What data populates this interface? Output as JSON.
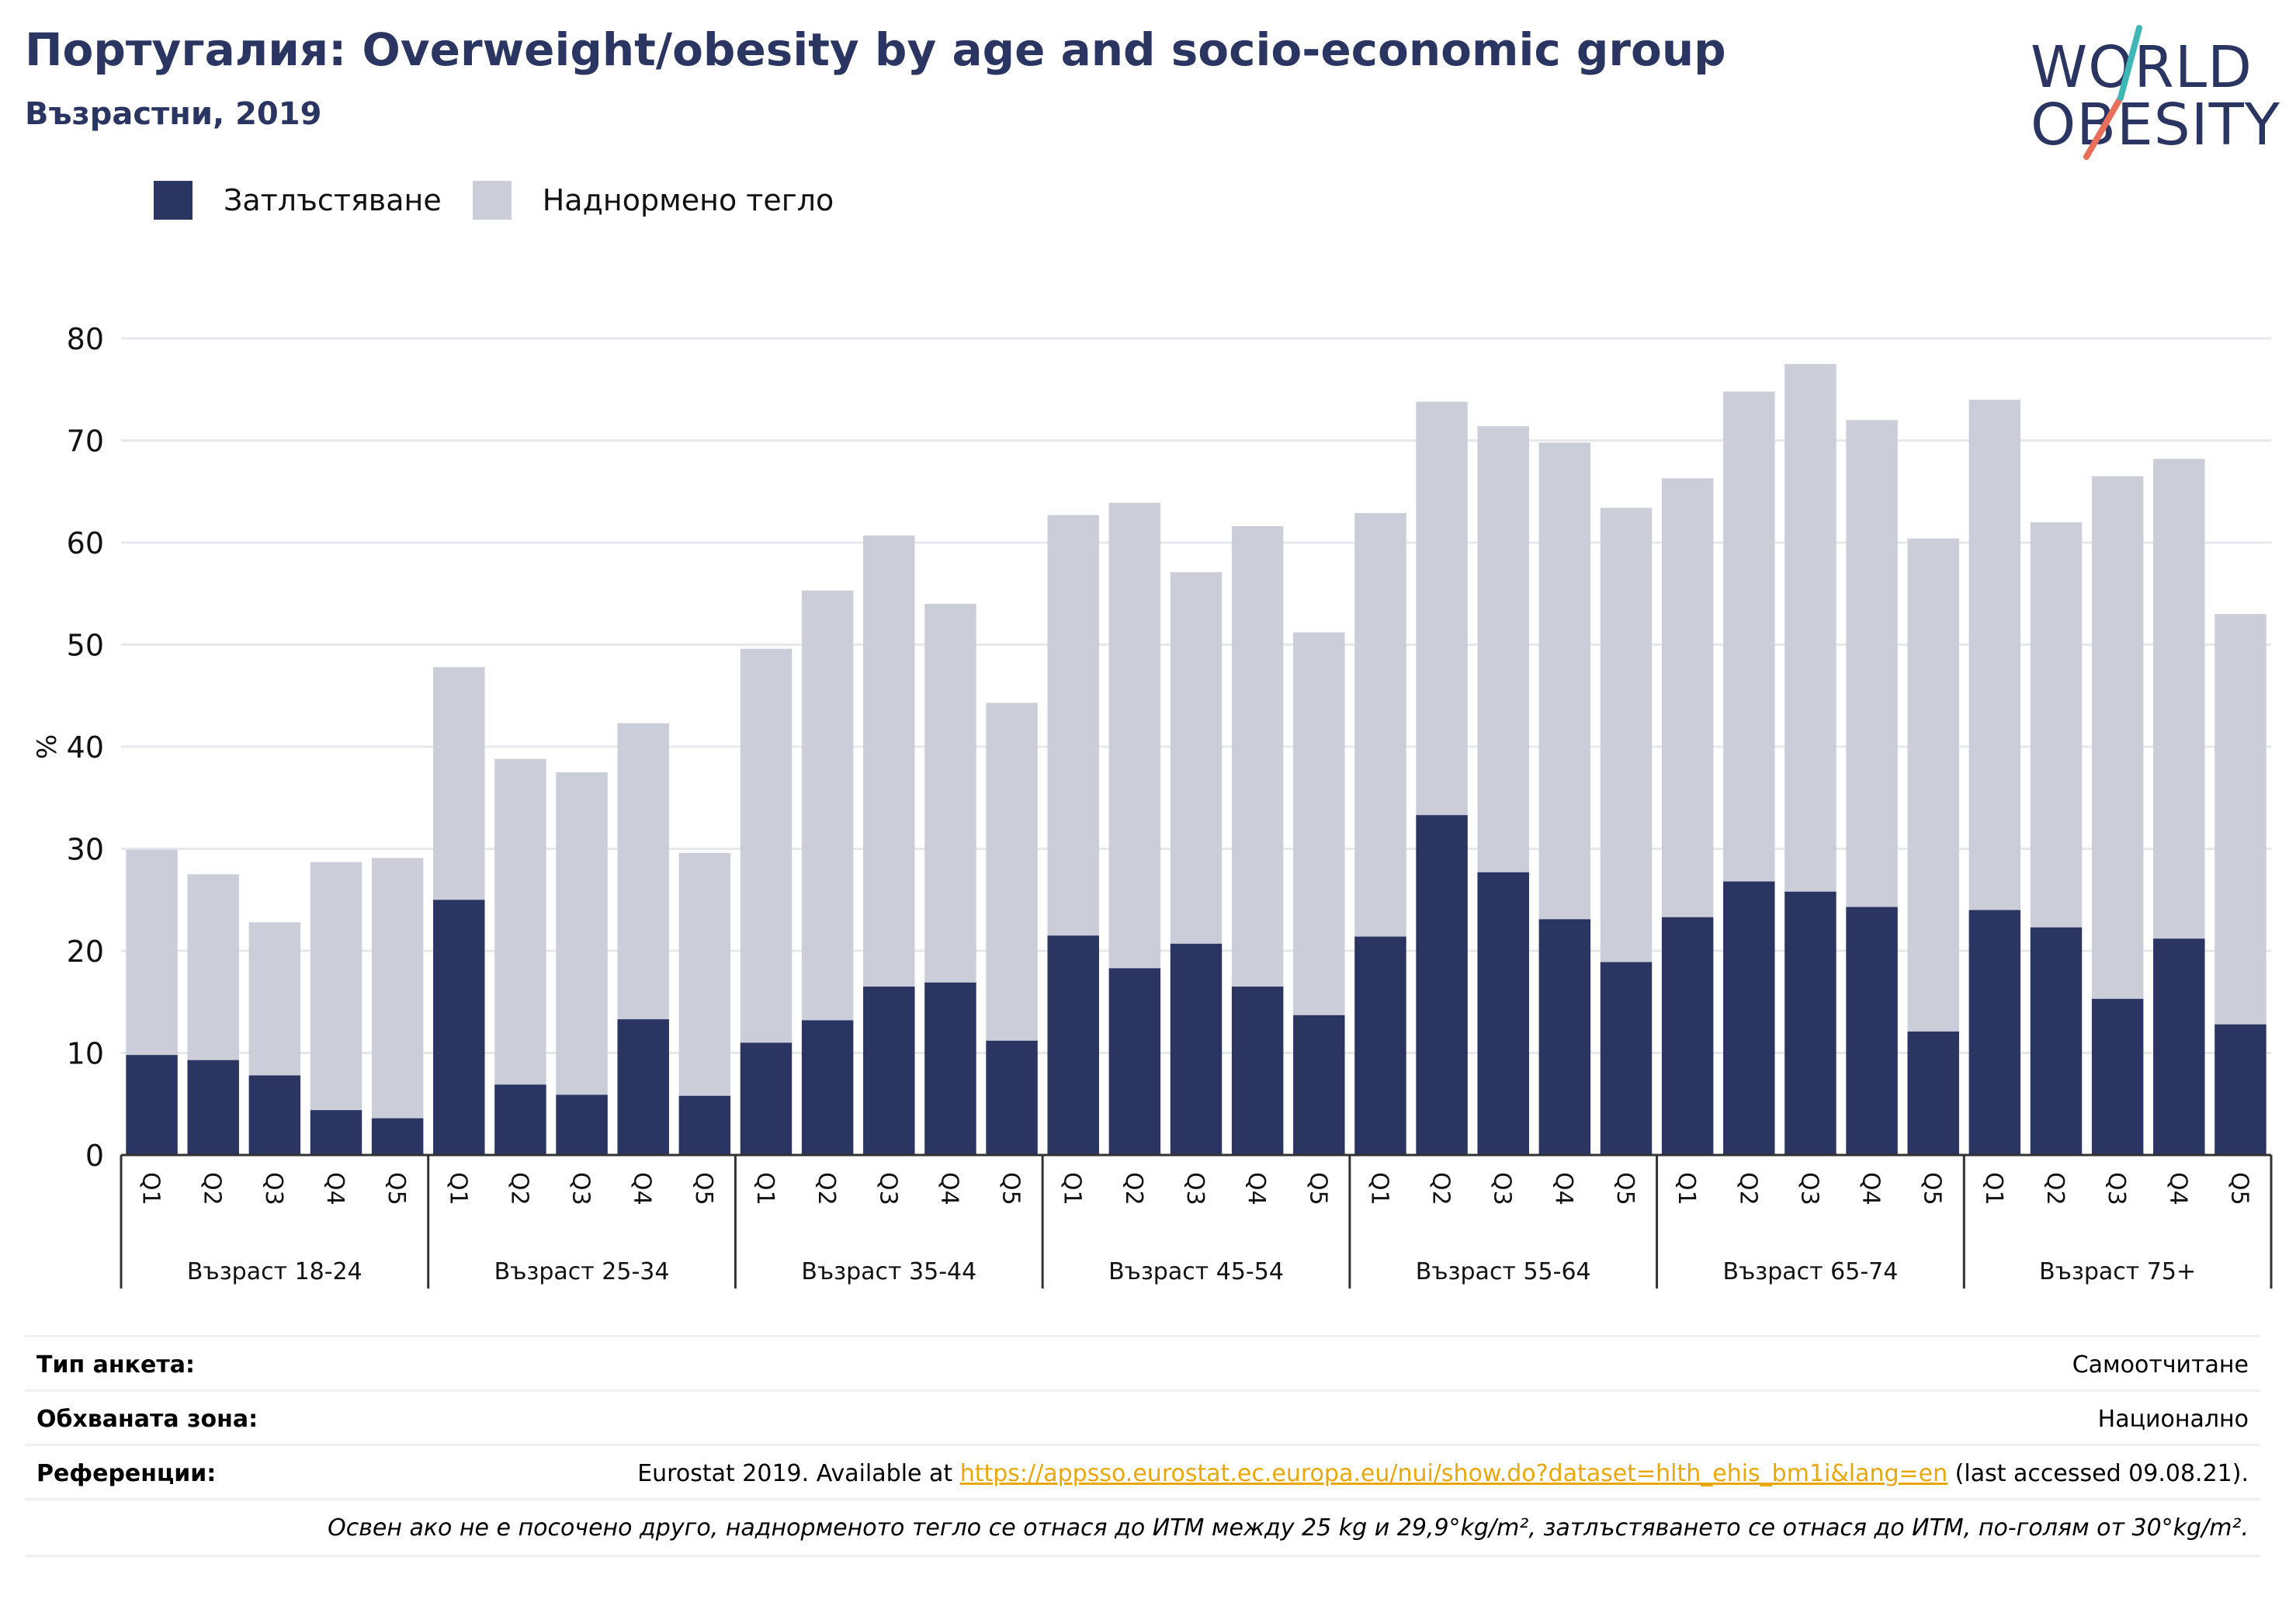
{
  "header": {
    "title": "Португалия: Overweight/obesity by age and socio-economic group",
    "subtitle": "Възрастни, 2019"
  },
  "logo": {
    "line1": "WORLD",
    "line2": "OBESITY"
  },
  "colors": {
    "obesity": "#2b3561",
    "overweight": "#cbcdd9",
    "grid": "#e6e8ec",
    "axis": "#333333",
    "accent": "#e8a80c"
  },
  "chart_data": {
    "type": "bar",
    "stacked": true,
    "ylabel": "%",
    "ylim": [
      0,
      80
    ],
    "yticks": [
      0,
      10,
      20,
      30,
      40,
      50,
      60,
      70,
      80
    ],
    "grid": true,
    "legend_position": "top-left",
    "groups": [
      "Възраст 18-24",
      "Възраст 25-34",
      "Възраст 35-44",
      "Възраст 45-54",
      "Възраст 55-64",
      "Възраст 65-74",
      "Възраст 75+"
    ],
    "categories": [
      "Q1",
      "Q2",
      "Q3",
      "Q4",
      "Q5"
    ],
    "series": [
      {
        "name": "Затлъстяване",
        "values": [
          [
            9.8,
            9.3,
            7.8,
            4.4,
            3.6
          ],
          [
            25.0,
            6.9,
            5.9,
            13.3,
            5.8
          ],
          [
            11.0,
            13.2,
            16.5,
            16.9,
            11.2
          ],
          [
            21.5,
            18.3,
            20.7,
            16.5,
            13.7
          ],
          [
            21.4,
            33.3,
            27.7,
            23.1,
            18.9
          ],
          [
            23.3,
            26.8,
            25.8,
            24.3,
            12.1
          ],
          [
            24.0,
            22.3,
            15.3,
            21.2,
            12.8
          ]
        ]
      },
      {
        "name": "Наднормено тегло",
        "values": [
          [
            20.1,
            18.2,
            15.0,
            24.3,
            25.5
          ],
          [
            22.8,
            31.9,
            31.6,
            29.0,
            23.8
          ],
          [
            38.6,
            42.1,
            44.2,
            37.1,
            33.1
          ],
          [
            41.2,
            45.6,
            36.4,
            45.1,
            37.5
          ],
          [
            41.5,
            40.5,
            43.7,
            46.7,
            44.5
          ],
          [
            43.0,
            48.0,
            51.7,
            47.7,
            48.3
          ],
          [
            50.0,
            39.7,
            51.2,
            47.0,
            40.2
          ]
        ]
      }
    ]
  },
  "meta": {
    "survey_type_label": "Тип анкета:",
    "survey_type_value": "Самоотчитане",
    "coverage_label": "Обхваната зона:",
    "coverage_value": "Национално",
    "references_label": "Референции:",
    "references_prefix": "Eurostat 2019. Available at ",
    "references_link": "https://appsso.eurostat.ec.europa.eu/nui/show.do?dataset=hlth_ehis_bm1i&lang=en",
    "references_suffix": " (last accessed 09.08.21).",
    "note": "Освен ако не е посочено друго, наднорменото тегло се отнася до ИТМ между 25 kg и 29,9°kg/m², затлъстяването се отнася до ИТМ, по-голям от 30°kg/m²."
  }
}
